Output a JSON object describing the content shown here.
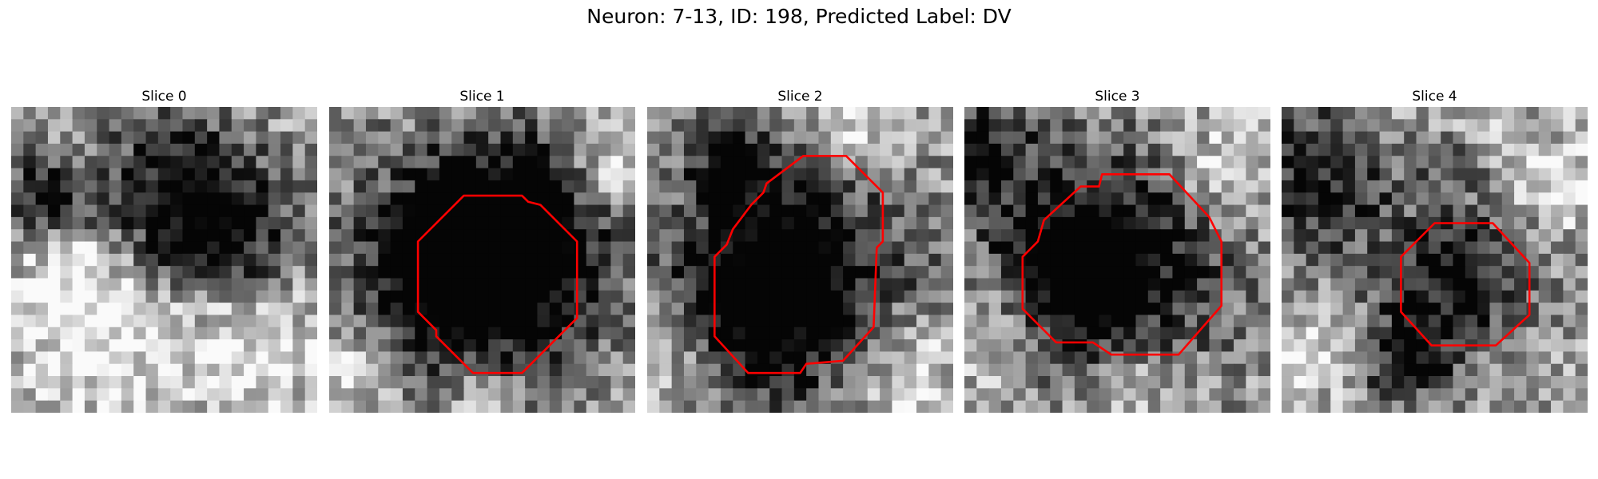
{
  "figure": {
    "title": "Neuron: 7-13, ID: 198, Predicted Label: DV"
  },
  "panels": [
    {
      "title": "Slice 0",
      "has_contour": false,
      "dark_blobs": [
        [
          0.52,
          0.27,
          0.18
        ],
        [
          0.72,
          0.4,
          0.15
        ],
        [
          0.1,
          0.3,
          0.1
        ]
      ],
      "bright_blobs": [
        [
          0.3,
          0.8,
          0.18
        ],
        [
          0.78,
          0.8,
          0.16
        ],
        [
          0.2,
          0.55,
          0.12
        ]
      ],
      "contour": []
    },
    {
      "title": "Slice 1",
      "has_contour": true,
      "dark_blobs": [
        [
          0.52,
          0.53,
          0.3
        ],
        [
          0.4,
          0.55,
          0.2
        ],
        [
          0.6,
          0.4,
          0.18
        ]
      ],
      "bright_blobs": [
        [
          0.1,
          0.85,
          0.12
        ],
        [
          0.92,
          0.2,
          0.1
        ],
        [
          0.5,
          0.93,
          0.1
        ]
      ],
      "contour": [
        [
          0.44,
          0.29
        ],
        [
          0.63,
          0.29
        ],
        [
          0.65,
          0.31
        ],
        [
          0.69,
          0.32
        ],
        [
          0.81,
          0.44
        ],
        [
          0.81,
          0.69
        ],
        [
          0.63,
          0.87
        ],
        [
          0.47,
          0.87
        ],
        [
          0.35,
          0.75
        ],
        [
          0.35,
          0.73
        ],
        [
          0.29,
          0.67
        ],
        [
          0.29,
          0.44
        ]
      ]
    },
    {
      "title": "Slice 2",
      "has_contour": true,
      "dark_blobs": [
        [
          0.52,
          0.55,
          0.28
        ],
        [
          0.28,
          0.18,
          0.1
        ],
        [
          0.35,
          0.62,
          0.2
        ]
      ],
      "bright_blobs": [
        [
          0.85,
          0.85,
          0.14
        ],
        [
          0.1,
          0.8,
          0.1
        ],
        [
          0.7,
          0.1,
          0.1
        ]
      ],
      "contour": [
        [
          0.51,
          0.16
        ],
        [
          0.65,
          0.16
        ],
        [
          0.77,
          0.28
        ],
        [
          0.77,
          0.44
        ],
        [
          0.75,
          0.46
        ],
        [
          0.74,
          0.72
        ],
        [
          0.64,
          0.83
        ],
        [
          0.52,
          0.84
        ],
        [
          0.5,
          0.87
        ],
        [
          0.33,
          0.87
        ],
        [
          0.22,
          0.75
        ],
        [
          0.22,
          0.49
        ],
        [
          0.26,
          0.45
        ],
        [
          0.28,
          0.4
        ],
        [
          0.34,
          0.32
        ],
        [
          0.38,
          0.28
        ],
        [
          0.39,
          0.25
        ]
      ]
    },
    {
      "title": "Slice 3",
      "has_contour": true,
      "dark_blobs": [
        [
          0.5,
          0.52,
          0.28
        ],
        [
          0.06,
          0.15,
          0.12
        ],
        [
          0.35,
          0.55,
          0.18
        ]
      ],
      "bright_blobs": [
        [
          0.1,
          0.72,
          0.14
        ],
        [
          0.85,
          0.2,
          0.12
        ],
        [
          0.55,
          0.9,
          0.12
        ]
      ],
      "contour": [
        [
          0.38,
          0.26
        ],
        [
          0.44,
          0.26
        ],
        [
          0.45,
          0.22
        ],
        [
          0.67,
          0.22
        ],
        [
          0.8,
          0.36
        ],
        [
          0.84,
          0.44
        ],
        [
          0.84,
          0.65
        ],
        [
          0.7,
          0.81
        ],
        [
          0.48,
          0.81
        ],
        [
          0.42,
          0.77
        ],
        [
          0.3,
          0.77
        ],
        [
          0.19,
          0.66
        ],
        [
          0.19,
          0.49
        ],
        [
          0.24,
          0.44
        ],
        [
          0.26,
          0.37
        ]
      ]
    },
    {
      "title": "Slice 4",
      "has_contour": true,
      "dark_blobs": [
        [
          0.59,
          0.55,
          0.16
        ],
        [
          0.12,
          0.25,
          0.18
        ],
        [
          0.4,
          0.82,
          0.12
        ],
        [
          0.55,
          0.15,
          0.08
        ]
      ],
      "bright_blobs": [
        [
          0.55,
          0.08,
          0.1
        ],
        [
          0.9,
          0.25,
          0.1
        ],
        [
          0.15,
          0.8,
          0.1
        ]
      ],
      "contour": [
        [
          0.5,
          0.38
        ],
        [
          0.69,
          0.38
        ],
        [
          0.81,
          0.51
        ],
        [
          0.81,
          0.68
        ],
        [
          0.7,
          0.78
        ],
        [
          0.49,
          0.78
        ],
        [
          0.39,
          0.67
        ],
        [
          0.39,
          0.49
        ]
      ]
    }
  ],
  "colors": {
    "contour": "#ff0000"
  }
}
